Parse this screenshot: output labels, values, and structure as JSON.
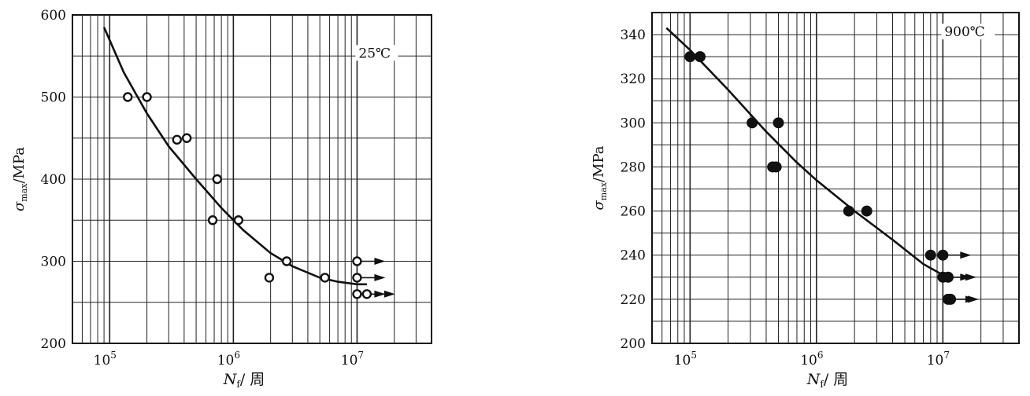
{
  "chart_data": [
    {
      "type": "scatter",
      "temperature_label": "25℃",
      "marker": "open-circle",
      "xlabel": {
        "main": "N",
        "sub": "f",
        "rest": "/ 周"
      },
      "ylabel": {
        "main": "σ",
        "sub": "max",
        "rest": "/MPa"
      },
      "xscale": "log",
      "xlim": [
        50000,
        40000000
      ],
      "ylim": [
        200,
        600
      ],
      "yticks": [
        200,
        300,
        400,
        500,
        600
      ],
      "xticks": [
        {
          "value": 100000,
          "base": "10",
          "exp": "5"
        },
        {
          "value": 1000000,
          "base": "10",
          "exp": "6"
        },
        {
          "value": 10000000,
          "base": "10",
          "exp": "7"
        }
      ],
      "points": [
        {
          "x": 140000,
          "y": 500
        },
        {
          "x": 200000,
          "y": 500
        },
        {
          "x": 350000,
          "y": 448
        },
        {
          "x": 420000,
          "y": 450
        },
        {
          "x": 680000,
          "y": 350
        },
        {
          "x": 740000,
          "y": 400
        },
        {
          "x": 1100000,
          "y": 350
        },
        {
          "x": 1950000,
          "y": 280
        },
        {
          "x": 2700000,
          "y": 300
        },
        {
          "x": 5500000,
          "y": 280
        }
      ],
      "runouts": [
        {
          "x": 10000000,
          "y": 300
        },
        {
          "x": 10000000,
          "y": 280
        },
        {
          "x": 10000000,
          "y": 260
        },
        {
          "x": 12000000,
          "y": 260
        }
      ],
      "curve": [
        [
          90000,
          585
        ],
        [
          130000,
          530
        ],
        [
          200000,
          480
        ],
        [
          300000,
          440
        ],
        [
          500000,
          400
        ],
        [
          800000,
          365
        ],
        [
          1200000,
          338
        ],
        [
          2000000,
          310
        ],
        [
          3000000,
          294
        ],
        [
          5000000,
          280
        ],
        [
          7000000,
          275
        ],
        [
          10000000,
          272
        ],
        [
          12000000,
          272
        ]
      ]
    },
    {
      "type": "scatter",
      "temperature_label": "900℃",
      "marker": "filled-circle",
      "xlabel": {
        "main": "N",
        "sub": "f",
        "rest": "/ 周"
      },
      "ylabel": {
        "main": "σ",
        "sub": "max",
        "rest": "/MPa"
      },
      "xscale": "log",
      "xlim": [
        50000,
        40000000
      ],
      "ylim": [
        200,
        350
      ],
      "yticks": [
        200,
        220,
        240,
        260,
        280,
        300,
        320,
        340
      ],
      "xticks": [
        {
          "value": 100000,
          "base": "10",
          "exp": "5"
        },
        {
          "value": 1000000,
          "base": "10",
          "exp": "6"
        },
        {
          "value": 10000000,
          "base": "10",
          "exp": "7"
        }
      ],
      "points": [
        {
          "x": 100000,
          "y": 330
        },
        {
          "x": 120000,
          "y": 330
        },
        {
          "x": 310000,
          "y": 300
        },
        {
          "x": 450000,
          "y": 280
        },
        {
          "x": 480000,
          "y": 280
        },
        {
          "x": 500000,
          "y": 300
        },
        {
          "x": 1800000,
          "y": 260
        },
        {
          "x": 2500000,
          "y": 260
        },
        {
          "x": 8000000,
          "y": 240
        }
      ],
      "runouts": [
        {
          "x": 10000000,
          "y": 240
        },
        {
          "x": 10000000,
          "y": 230
        },
        {
          "x": 11000000,
          "y": 230
        },
        {
          "x": 11000000,
          "y": 220
        },
        {
          "x": 11500000,
          "y": 220
        }
      ],
      "curve": [
        [
          65000,
          343
        ],
        [
          100000,
          333
        ],
        [
          200000,
          315
        ],
        [
          400000,
          296
        ],
        [
          700000,
          282
        ],
        [
          1000000,
          274
        ],
        [
          2000000,
          260
        ],
        [
          4000000,
          247
        ],
        [
          7000000,
          236
        ],
        [
          10000000,
          231
        ]
      ]
    }
  ]
}
